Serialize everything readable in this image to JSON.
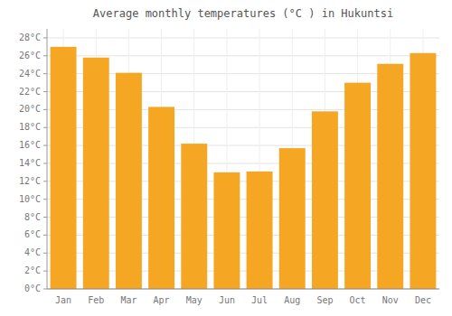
{
  "chart_data": {
    "type": "bar",
    "title": "Average monthly temperatures (°C ) in Hukuntsi",
    "categories": [
      "Jan",
      "Feb",
      "Mar",
      "Apr",
      "May",
      "Jun",
      "Jul",
      "Aug",
      "Sep",
      "Oct",
      "Nov",
      "Dec"
    ],
    "values": [
      27.0,
      25.8,
      24.1,
      20.3,
      16.2,
      13.0,
      13.1,
      15.7,
      19.8,
      23.0,
      25.1,
      26.3
    ],
    "color": "#F5A623",
    "ylim": [
      0,
      29
    ],
    "yticks": [
      {
        "value": 0,
        "label": "0°C"
      },
      {
        "value": 2,
        "label": "2°C"
      },
      {
        "value": 4,
        "label": "4°C"
      },
      {
        "value": 6,
        "label": "6°C"
      },
      {
        "value": 8,
        "label": "8°C"
      },
      {
        "value": 10,
        "label": "10°C"
      },
      {
        "value": 12,
        "label": "12°C"
      },
      {
        "value": 14,
        "label": "14°C"
      },
      {
        "value": 16,
        "label": "16°C"
      },
      {
        "value": 18,
        "label": "18°C"
      },
      {
        "value": 20,
        "label": "20°C"
      },
      {
        "value": 22,
        "label": "22°C"
      },
      {
        "value": 24,
        "label": "24°C"
      },
      {
        "value": 26,
        "label": "26°C"
      },
      {
        "value": 28,
        "label": "28°C"
      }
    ],
    "grid": true
  }
}
